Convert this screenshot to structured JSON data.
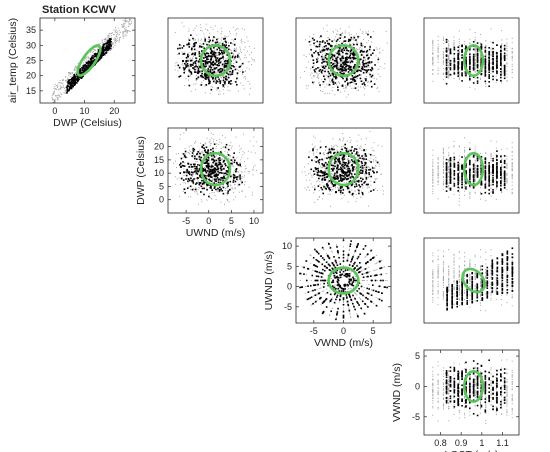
{
  "figure": {
    "title": "Station KCWV",
    "colors": {
      "selected": "#000000",
      "all": "#a6a6a6",
      "ellipse": "#5cc45a"
    }
  },
  "chart_data": [
    {
      "type": "scatter",
      "id": "p11",
      "row": 0,
      "col": 0,
      "xlabel": "DWP (Celsius)",
      "ylabel": "air_temp (Celsius)",
      "xlim": [
        -5,
        27
      ],
      "ylim": [
        11,
        39
      ],
      "xticks": [
        0,
        10,
        20
      ],
      "yticks": [
        15,
        20,
        25,
        30,
        35
      ],
      "x_ticklabels": [
        "0",
        "10",
        "20"
      ],
      "y_ticklabels": [
        "15",
        "20",
        "25",
        "30",
        "35"
      ],
      "ellipse": {
        "cx": 11.5,
        "cy": 25,
        "rx": 6,
        "ry": 2,
        "angle_deg": 55
      },
      "all_points": {
        "shape": "band",
        "x": [
          -1,
          26
        ],
        "y": [
          13,
          38
        ]
      },
      "selected_points": {
        "shape": "band",
        "x": [
          4,
          19
        ],
        "y": [
          16,
          31
        ]
      }
    },
    {
      "type": "scatter",
      "id": "p12",
      "row": 0,
      "col": 1,
      "xlabel": "",
      "ylabel": "",
      "xlim": [
        -9,
        12
      ],
      "ylim": [
        11,
        39
      ],
      "xticks": [],
      "yticks": [],
      "ellipse": {
        "cx": 1.5,
        "cy": 25,
        "rx": 3.2,
        "ry": 5,
        "angle_deg": 0
      },
      "all_points": {
        "shape": "box",
        "x": [
          -8,
          11
        ],
        "y": [
          12,
          38
        ]
      },
      "selected_points": {
        "shape": "box",
        "x": [
          -7,
          8
        ],
        "y": [
          15,
          34
        ]
      }
    },
    {
      "type": "scatter",
      "id": "p13",
      "row": 0,
      "col": 2,
      "xlabel": "",
      "ylabel": "",
      "xlim": [
        -8,
        8
      ],
      "ylim": [
        11,
        39
      ],
      "xticks": [],
      "yticks": [],
      "ellipse": {
        "cx": 0,
        "cy": 25,
        "rx": 2.5,
        "ry": 5,
        "angle_deg": 0
      },
      "all_points": {
        "shape": "box",
        "x": [
          -7.5,
          7.5
        ],
        "y": [
          12,
          38
        ]
      },
      "selected_points": {
        "shape": "box",
        "x": [
          -6,
          6
        ],
        "y": [
          15,
          34
        ]
      }
    },
    {
      "type": "scatter",
      "id": "p14",
      "row": 0,
      "col": 3,
      "xlabel": "",
      "ylabel": "",
      "xlim": [
        0.72,
        1.18
      ],
      "ylim": [
        11,
        39
      ],
      "xticks": [],
      "yticks": [],
      "ellipse": {
        "cx": 0.96,
        "cy": 25,
        "rx": 0.045,
        "ry": 5,
        "angle_deg": 0
      },
      "all_points": {
        "shape": "stripes",
        "x": [
          0.75,
          1.16
        ],
        "y": [
          14,
          37
        ]
      },
      "selected_points": {
        "shape": "stripes",
        "x": [
          0.82,
          1.12
        ],
        "y": [
          16,
          33
        ]
      }
    },
    {
      "type": "scatter",
      "id": "p22",
      "row": 1,
      "col": 1,
      "xlabel": "UWND (m/s)",
      "ylabel": "DWP (Celsius)",
      "xlim": [
        -9,
        12
      ],
      "ylim": [
        -5,
        27
      ],
      "xticks": [
        -5,
        0,
        5,
        10
      ],
      "yticks": [
        0,
        5,
        10,
        15,
        20
      ],
      "x_ticklabels": [
        "-5",
        "0",
        "5",
        "10"
      ],
      "y_ticklabels": [
        "0",
        "5",
        "10",
        "15",
        "20"
      ],
      "ellipse": {
        "cx": 1.5,
        "cy": 11.5,
        "rx": 3.2,
        "ry": 6,
        "angle_deg": 0
      },
      "all_points": {
        "shape": "box",
        "x": [
          -8,
          11
        ],
        "y": [
          -3,
          26
        ]
      },
      "selected_points": {
        "shape": "box",
        "x": [
          -7,
          8
        ],
        "y": [
          1,
          21
        ]
      }
    },
    {
      "type": "scatter",
      "id": "p23",
      "row": 1,
      "col": 2,
      "xlabel": "",
      "ylabel": "",
      "xlim": [
        -8,
        8
      ],
      "ylim": [
        -5,
        27
      ],
      "xticks": [],
      "yticks": [],
      "ellipse": {
        "cx": 0,
        "cy": 11.5,
        "rx": 2.5,
        "ry": 6,
        "angle_deg": 0
      },
      "all_points": {
        "shape": "box",
        "x": [
          -7.5,
          7.5
        ],
        "y": [
          -3,
          26
        ]
      },
      "selected_points": {
        "shape": "box",
        "x": [
          -6,
          6
        ],
        "y": [
          1,
          21
        ]
      }
    },
    {
      "type": "scatter",
      "id": "p24",
      "row": 1,
      "col": 3,
      "xlabel": "",
      "ylabel": "",
      "xlim": [
        0.72,
        1.18
      ],
      "ylim": [
        -5,
        27
      ],
      "xticks": [],
      "yticks": [],
      "ellipse": {
        "cx": 0.96,
        "cy": 11.5,
        "rx": 0.045,
        "ry": 6,
        "angle_deg": 0
      },
      "all_points": {
        "shape": "stripes",
        "x": [
          0.75,
          1.16
        ],
        "y": [
          -3,
          25
        ]
      },
      "selected_points": {
        "shape": "stripes",
        "x": [
          0.82,
          1.12
        ],
        "y": [
          0,
          20
        ]
      }
    },
    {
      "type": "scatter",
      "id": "p33",
      "row": 2,
      "col": 2,
      "xlabel": "VWND (m/s)",
      "ylabel": "UWND (m/s)",
      "xlim": [
        -8,
        8
      ],
      "ylim": [
        -9,
        12
      ],
      "xticks": [
        -5,
        0,
        5
      ],
      "yticks": [
        -5,
        0,
        5,
        10
      ],
      "x_ticklabels": [
        "-5",
        "0",
        "5"
      ],
      "y_ticklabels": [
        "-5",
        "0",
        "5",
        "10"
      ],
      "ellipse": {
        "cx": 0,
        "cy": 1.5,
        "rx": 2.5,
        "ry": 3.2,
        "angle_deg": 0
      },
      "all_points": {
        "shape": "radial",
        "x": [
          -7,
          7
        ],
        "y": [
          -6,
          10
        ]
      },
      "selected_points": {
        "shape": "radial",
        "x": [
          -7,
          7
        ],
        "y": [
          -6,
          10
        ]
      }
    },
    {
      "type": "scatter",
      "id": "p34",
      "row": 2,
      "col": 3,
      "xlabel": "",
      "ylabel": "",
      "xlim": [
        0.72,
        1.18
      ],
      "ylim": [
        -9,
        12
      ],
      "xticks": [],
      "yticks": [],
      "ellipse": {
        "cx": 0.96,
        "cy": 1.5,
        "rx": 0.045,
        "ry": 3.2,
        "angle_deg": 40
      },
      "all_points": {
        "shape": "stripes",
        "x": [
          0.75,
          1.16
        ],
        "y": [
          -7,
          11
        ]
      },
      "selected_points": {
        "shape": "wedge",
        "x": [
          0.82,
          1.16
        ],
        "y": [
          -6,
          10
        ]
      }
    },
    {
      "type": "scatter",
      "id": "p44",
      "row": 3,
      "col": 3,
      "xlabel": "LGST (m/s)",
      "ylabel": "VWND (m/s)",
      "xlim": [
        0.72,
        1.18
      ],
      "ylim": [
        -8,
        6
      ],
      "xticks": [
        0.8,
        0.9,
        1,
        1.1
      ],
      "yticks": [
        -5,
        0,
        5
      ],
      "x_ticklabels": [
        "0.8",
        "0.9",
        "1",
        "1.1"
      ],
      "y_ticklabels": [
        "-5",
        "0",
        "5"
      ],
      "ellipse": {
        "cx": 0.96,
        "cy": 0,
        "rx": 0.045,
        "ry": 2.5,
        "angle_deg": 0
      },
      "all_points": {
        "shape": "stripes",
        "x": [
          0.75,
          1.16
        ],
        "y": [
          -7,
          5.5
        ]
      },
      "selected_points": {
        "shape": "stripes",
        "x": [
          0.82,
          1.12
        ],
        "y": [
          -5.5,
          5
        ]
      }
    }
  ]
}
